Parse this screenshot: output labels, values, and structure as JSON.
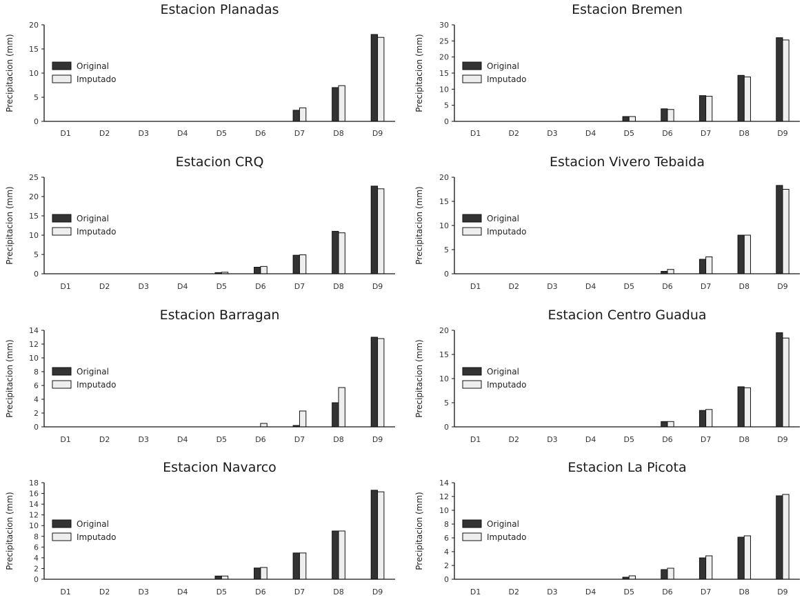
{
  "chart_data": [
    {
      "type": "bar",
      "title": "Estacion Planadas",
      "ylabel": "Precipitacion (mm)",
      "ylim": [
        0,
        20
      ],
      "yticks": [
        0,
        5,
        10,
        15,
        20
      ],
      "categories": [
        "D1",
        "D2",
        "D3",
        "D4",
        "D5",
        "D6",
        "D7",
        "D8",
        "D9"
      ],
      "legend": "left",
      "series": [
        {
          "name": "Original",
          "color": "#333333",
          "values": [
            0,
            0,
            0,
            0,
            0,
            0,
            2.3,
            7.0,
            18.0
          ]
        },
        {
          "name": "Imputado",
          "color": "#eeeeee",
          "values": [
            0,
            0,
            0,
            0,
            0,
            0,
            2.8,
            7.4,
            17.4
          ]
        }
      ]
    },
    {
      "type": "bar",
      "title": "Estacion Bremen",
      "ylabel": "Precipitacion (mm)",
      "ylim": [
        0,
        30
      ],
      "yticks": [
        0,
        5,
        10,
        15,
        20,
        25,
        30
      ],
      "categories": [
        "D1",
        "D2",
        "D3",
        "D4",
        "D5",
        "D6",
        "D7",
        "D8",
        "D9"
      ],
      "legend": "left",
      "series": [
        {
          "name": "Original",
          "color": "#333333",
          "values": [
            0,
            0,
            0,
            0,
            1.5,
            3.9,
            8.0,
            14.3,
            26.0
          ]
        },
        {
          "name": "Imputado",
          "color": "#eeeeee",
          "values": [
            0,
            0,
            0,
            0,
            1.5,
            3.7,
            7.8,
            13.8,
            25.3
          ]
        }
      ]
    },
    {
      "type": "bar",
      "title": "Estacion CRQ",
      "ylabel": "Precipitacion (mm)",
      "ylim": [
        0,
        25
      ],
      "yticks": [
        0,
        5,
        10,
        15,
        20,
        25
      ],
      "categories": [
        "D1",
        "D2",
        "D3",
        "D4",
        "D5",
        "D6",
        "D7",
        "D8",
        "D9"
      ],
      "legend": "left",
      "series": [
        {
          "name": "Original",
          "color": "#333333",
          "values": [
            0,
            0,
            0,
            0,
            0.3,
            1.7,
            4.8,
            11.0,
            22.7
          ]
        },
        {
          "name": "Imputado",
          "color": "#eeeeee",
          "values": [
            0,
            0,
            0,
            0,
            0.4,
            1.9,
            4.9,
            10.6,
            22.0
          ]
        }
      ]
    },
    {
      "type": "bar",
      "title": "Estacion Vivero Tebaida",
      "ylabel": "Precipitacion (mm)",
      "ylim": [
        0,
        20
      ],
      "yticks": [
        0,
        5,
        10,
        15,
        20
      ],
      "categories": [
        "D1",
        "D2",
        "D3",
        "D4",
        "D5",
        "D6",
        "D7",
        "D8",
        "D9"
      ],
      "legend": "left",
      "series": [
        {
          "name": "Original",
          "color": "#333333",
          "values": [
            0,
            0,
            0,
            0,
            0,
            0.5,
            3.0,
            8.0,
            18.3
          ]
        },
        {
          "name": "Imputado",
          "color": "#eeeeee",
          "values": [
            0,
            0,
            0,
            0,
            0,
            0.9,
            3.5,
            8.0,
            17.5
          ]
        }
      ]
    },
    {
      "type": "bar",
      "title": "Estacion Barragan",
      "ylabel": "Precipitacion (mm)",
      "ylim": [
        0,
        14
      ],
      "yticks": [
        0,
        2,
        4,
        6,
        8,
        10,
        12,
        14
      ],
      "categories": [
        "D1",
        "D2",
        "D3",
        "D4",
        "D5",
        "D6",
        "D7",
        "D8",
        "D9"
      ],
      "legend": "left",
      "series": [
        {
          "name": "Original",
          "color": "#333333",
          "values": [
            0,
            0,
            0,
            0,
            0,
            0,
            0.2,
            3.5,
            13.0
          ]
        },
        {
          "name": "Imputado",
          "color": "#eeeeee",
          "values": [
            0,
            0,
            0,
            0,
            0,
            0.5,
            2.3,
            5.7,
            12.8
          ]
        }
      ]
    },
    {
      "type": "bar",
      "title": "Estacion Centro Guadua",
      "ylabel": "Precipitacion (mm)",
      "ylim": [
        0,
        20
      ],
      "yticks": [
        0,
        5,
        10,
        15,
        20
      ],
      "categories": [
        "D1",
        "D2",
        "D3",
        "D4",
        "D5",
        "D6",
        "D7",
        "D8",
        "D9"
      ],
      "legend": "left",
      "series": [
        {
          "name": "Original",
          "color": "#333333",
          "values": [
            0,
            0,
            0,
            0,
            0,
            1.1,
            3.4,
            8.3,
            19.5
          ]
        },
        {
          "name": "Imputado",
          "color": "#eeeeee",
          "values": [
            0,
            0,
            0,
            0,
            0,
            1.1,
            3.6,
            8.1,
            18.4
          ]
        }
      ]
    },
    {
      "type": "bar",
      "title": "Estacion Navarco",
      "ylabel": "Precipitacion (mm)",
      "ylim": [
        0,
        18
      ],
      "yticks": [
        0,
        2,
        4,
        6,
        8,
        10,
        12,
        14,
        16,
        18
      ],
      "categories": [
        "D1",
        "D2",
        "D3",
        "D4",
        "D5",
        "D6",
        "D7",
        "D8",
        "D9"
      ],
      "legend": "left",
      "series": [
        {
          "name": "Original",
          "color": "#333333",
          "values": [
            0,
            0,
            0,
            0,
            0.6,
            2.1,
            4.9,
            9.0,
            16.6
          ]
        },
        {
          "name": "Imputado",
          "color": "#eeeeee",
          "values": [
            0,
            0,
            0,
            0,
            0.6,
            2.2,
            4.9,
            9.0,
            16.3
          ]
        }
      ]
    },
    {
      "type": "bar",
      "title": "Estacion La Picota",
      "ylabel": "Precipitacion (mm)",
      "ylim": [
        0,
        14
      ],
      "yticks": [
        0,
        2,
        4,
        6,
        8,
        10,
        12,
        14
      ],
      "categories": [
        "D1",
        "D2",
        "D3",
        "D4",
        "D5",
        "D6",
        "D7",
        "D8",
        "D9"
      ],
      "legend": "left",
      "series": [
        {
          "name": "Original",
          "color": "#333333",
          "values": [
            0,
            0,
            0,
            0,
            0.3,
            1.4,
            3.1,
            6.1,
            12.1
          ]
        },
        {
          "name": "Imputado",
          "color": "#eeeeee",
          "values": [
            0,
            0,
            0,
            0,
            0.5,
            1.6,
            3.4,
            6.3,
            12.3
          ]
        }
      ]
    }
  ]
}
